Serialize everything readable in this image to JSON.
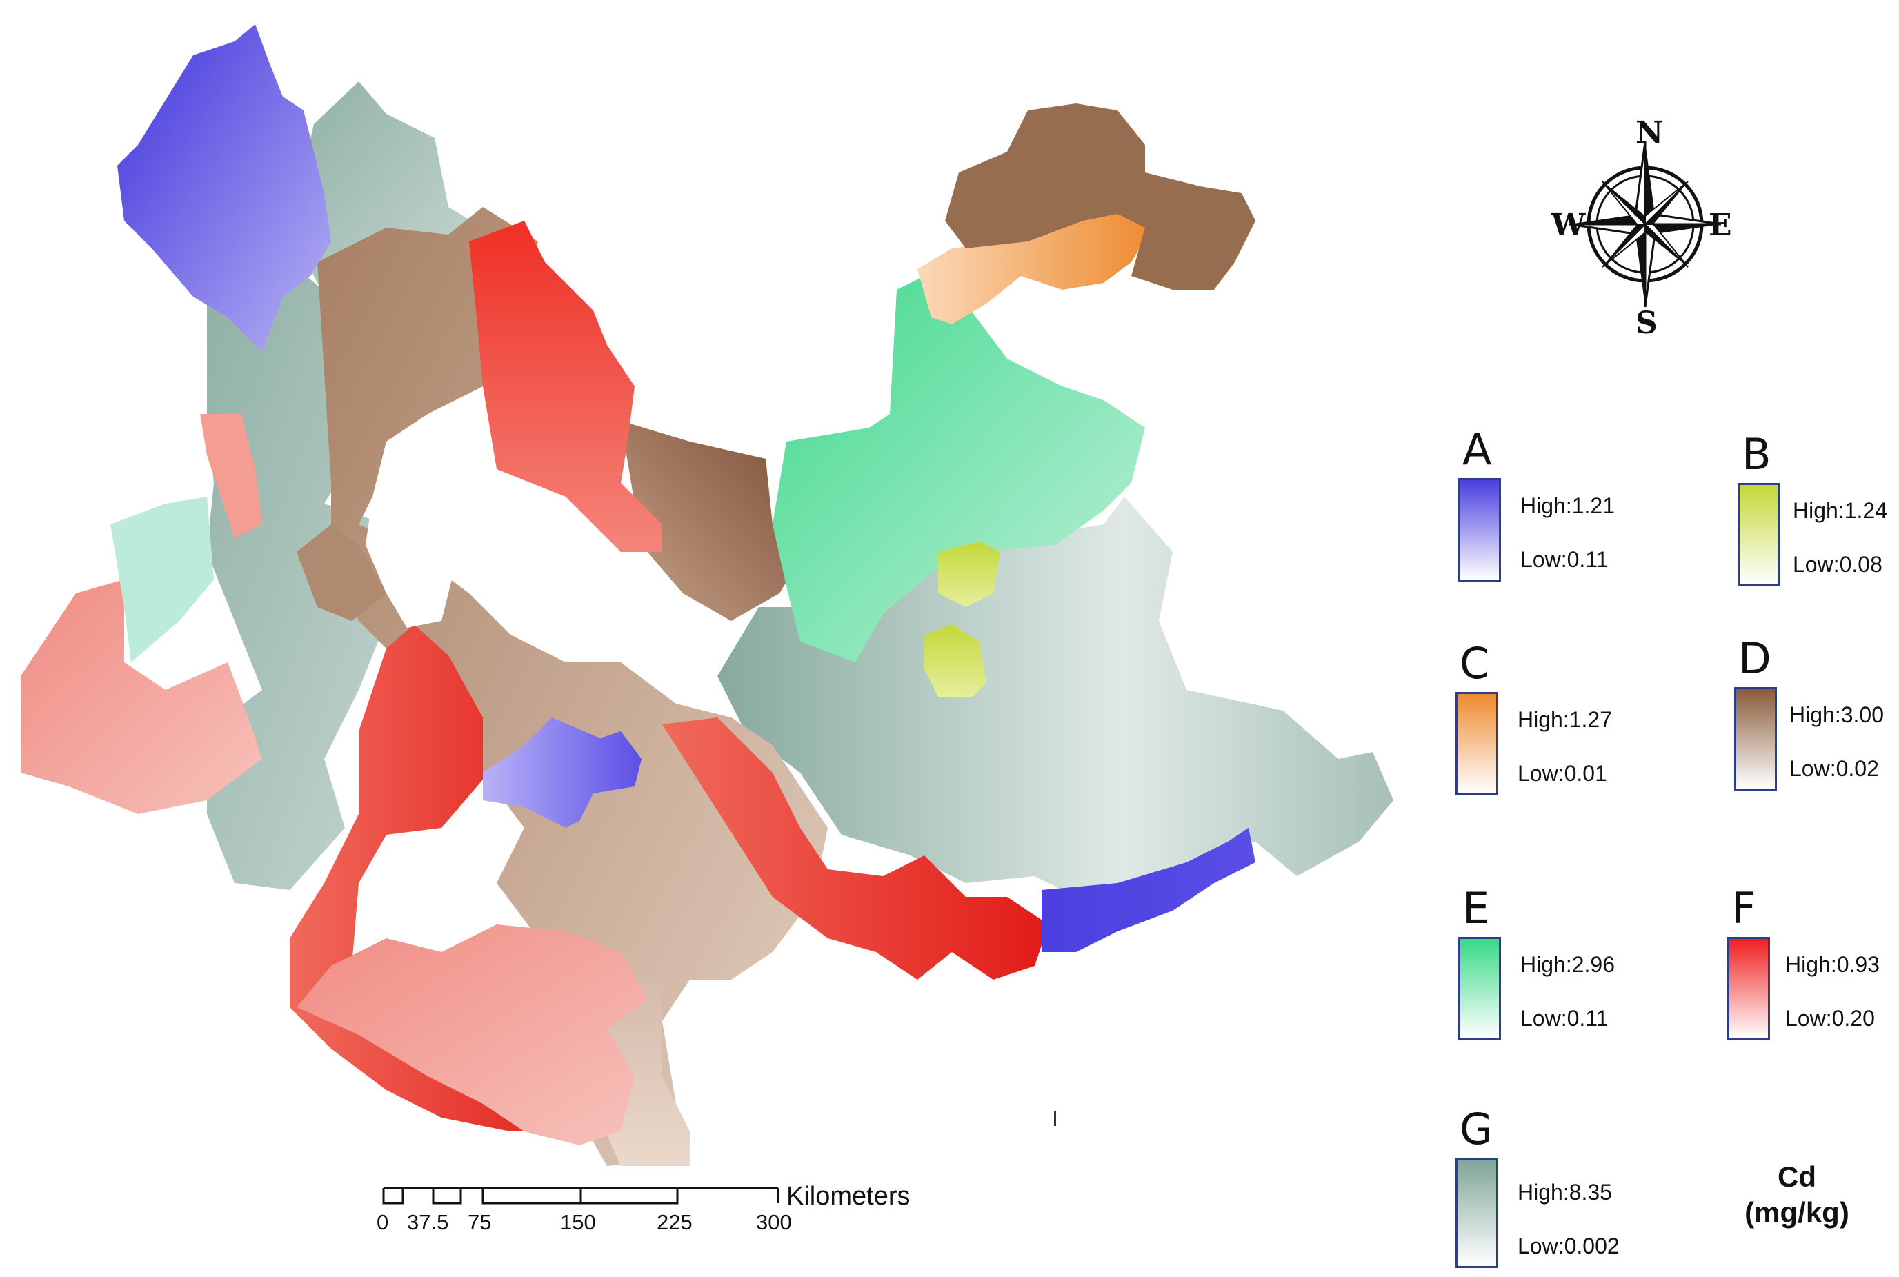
{
  "map": {
    "zones": [
      {
        "id": "A",
        "color": "#5a4fe3"
      },
      {
        "id": "B",
        "color": "#c7d94a"
      },
      {
        "id": "C",
        "color": "#ef8f3b"
      },
      {
        "id": "D",
        "color": "#8e6246"
      },
      {
        "id": "E",
        "color": "#3ed98f"
      },
      {
        "id": "F",
        "color": "#ef2a22"
      },
      {
        "id": "G",
        "color": "#7fa59a"
      }
    ]
  },
  "legend": {
    "groups": [
      {
        "letter": "A",
        "high": "High:1.21",
        "low": "Low:0.11",
        "color_high": "#4a3fe0",
        "color_low": "#ffffff"
      },
      {
        "letter": "B",
        "high": "High:1.24",
        "low": "Low:0.08",
        "color_high": "#c4d83a",
        "color_low": "#ffffff"
      },
      {
        "letter": "C",
        "high": "High:1.27",
        "low": "Low:0.01",
        "color_high": "#ee8a30",
        "color_low": "#ffffff"
      },
      {
        "letter": "D",
        "high": "High:3.00",
        "low": "Low:0.02",
        "color_high": "#8a5a3a",
        "color_low": "#ffffff"
      },
      {
        "letter": "E",
        "high": "High:2.96",
        "low": "Low:0.11",
        "color_high": "#38d987",
        "color_low": "#ffffff"
      },
      {
        "letter": "F",
        "high": "High:0.93",
        "low": "Low:0.20",
        "color_high": "#ef1f1f",
        "color_low": "#ffffff"
      },
      {
        "letter": "G",
        "high": "High:8.35",
        "low": "Low:0.002",
        "color_high": "#7fa596",
        "color_low": "#ffffff"
      }
    ],
    "unit_line1": "Cd",
    "unit_line2": "(mg/kg)"
  },
  "scale_bar": {
    "ticks": [
      "0",
      "37.5",
      "75",
      "150",
      "225",
      "300"
    ],
    "unit": "Kilometers"
  },
  "compass": {
    "n": "N",
    "s": "S",
    "e": "E",
    "w": "W"
  }
}
